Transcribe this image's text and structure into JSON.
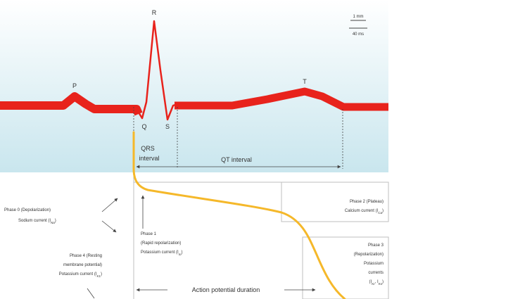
{
  "colors": {
    "ecg_panel_top": "#ffffff",
    "ecg_panel_bottom": "#c9e6ee",
    "ecg_trace": "#e8231c",
    "action_potential": "#f5b82a",
    "text": "#333333",
    "lines": "#444444",
    "box_border": "#bfbfbf"
  },
  "ecg": {
    "wave_labels": {
      "p": "P",
      "q": "Q",
      "r": "R",
      "s": "S",
      "t": "T"
    },
    "scale_top": "1 mm",
    "scale_bottom": "40 ms",
    "qrs_interval": [
      "QRS",
      "interval"
    ],
    "qt_interval": "QT interval"
  },
  "phases": {
    "phase0": {
      "title": "Phase 0 (Depolarization)",
      "current": "Sodium current (I",
      "sub": "Na",
      "close": ")"
    },
    "phase1": {
      "title": "Phase 1",
      "desc": "(Rapid repolarization)",
      "current": "Potassium current (I",
      "sub": "to",
      "close": ")"
    },
    "phase2": {
      "title": "Phase 2 (Plateau)",
      "current": "Calcium current (I",
      "sub": "Ca",
      "close": ")"
    },
    "phase3": {
      "lines": [
        "Phase 3",
        "(Repolarization)",
        "Potassium",
        "currents"
      ],
      "currents": "(I",
      "sub1": "Kr",
      "mid": ", I",
      "sub2": "Ks",
      "close": ")"
    },
    "phase4": {
      "lines": [
        "Phase 4 (Resting",
        "membrane potential)"
      ],
      "current": "Potassium current (I",
      "sub": "K1",
      "close": ")"
    }
  },
  "apd_label": "Action potential duration"
}
